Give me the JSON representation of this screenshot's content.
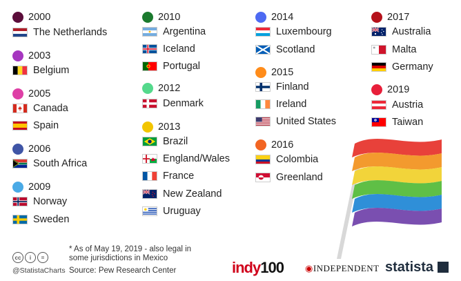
{
  "chart_data": {
    "type": "table",
    "groups": [
      {
        "year": "2000",
        "color": "#5b0d3a",
        "countries": [
          {
            "name": "The Netherlands",
            "flag": "nl"
          }
        ]
      },
      {
        "year": "2003",
        "color": "#a637c0",
        "countries": [
          {
            "name": "Belgium",
            "flag": "be"
          }
        ]
      },
      {
        "year": "2005",
        "color": "#de3fa6",
        "countries": [
          {
            "name": "Canada",
            "flag": "ca"
          },
          {
            "name": "Spain",
            "flag": "es"
          }
        ]
      },
      {
        "year": "2006",
        "color": "#3f55a6",
        "countries": [
          {
            "name": "South Africa",
            "flag": "za"
          }
        ]
      },
      {
        "year": "2009",
        "color": "#4aaae6",
        "countries": [
          {
            "name": "Norway",
            "flag": "no"
          },
          {
            "name": "Sweden",
            "flag": "se"
          }
        ]
      },
      {
        "year": "2010",
        "color": "#1b7a2e",
        "countries": [
          {
            "name": "Argentina",
            "flag": "ar"
          },
          {
            "name": "Iceland",
            "flag": "is"
          },
          {
            "name": "Portugal",
            "flag": "pt"
          }
        ]
      },
      {
        "year": "2012",
        "color": "#54d98c",
        "countries": [
          {
            "name": "Denmark",
            "flag": "dk"
          }
        ]
      },
      {
        "year": "2013",
        "color": "#f2c500",
        "countries": [
          {
            "name": "Brazil",
            "flag": "br"
          },
          {
            "name": "England/Wales",
            "flag": "ew"
          },
          {
            "name": "France",
            "flag": "fr"
          },
          {
            "name": "New Zealand",
            "flag": "nz"
          },
          {
            "name": "Uruguay",
            "flag": "uy"
          }
        ]
      },
      {
        "year": "2014",
        "color": "#4d6af2",
        "countries": [
          {
            "name": "Luxembourg",
            "flag": "lu"
          },
          {
            "name": "Scotland",
            "flag": "sco"
          }
        ]
      },
      {
        "year": "2015",
        "color": "#ff8c1a",
        "countries": [
          {
            "name": "Finland",
            "flag": "fi"
          },
          {
            "name": "Ireland",
            "flag": "ie"
          },
          {
            "name": "United States",
            "flag": "us"
          }
        ]
      },
      {
        "year": "2016",
        "color": "#f26522",
        "countries": [
          {
            "name": "Colombia",
            "flag": "co"
          },
          {
            "name": "Greenland",
            "flag": "gl"
          }
        ]
      },
      {
        "year": "2017",
        "color": "#b5121b",
        "countries": [
          {
            "name": "Australia",
            "flag": "au"
          },
          {
            "name": "Malta",
            "flag": "mt"
          },
          {
            "name": "Germany",
            "flag": "de"
          }
        ]
      },
      {
        "year": "2019",
        "color": "#e81f3a",
        "countries": [
          {
            "name": "Austria",
            "flag": "at"
          },
          {
            "name": "Taiwan",
            "flag": "tw"
          }
        ]
      }
    ]
  },
  "footer": {
    "footnote": "* As of May 19, 2019 - also legal in some jurisdictions in Mexico",
    "source": "Source: Pew Research Center",
    "handle": "@StatistaCharts",
    "cc_icons": [
      "cc",
      "i",
      "="
    ],
    "logo_indy": "indy",
    "logo_indy_num": "100",
    "logo_independent": "INDEPENDENT",
    "logo_statista": "statista"
  },
  "rainbow": [
    "#e8413a",
    "#f39a2e",
    "#f2d43a",
    "#5fbf46",
    "#2f8fd8",
    "#7a4fb0"
  ]
}
